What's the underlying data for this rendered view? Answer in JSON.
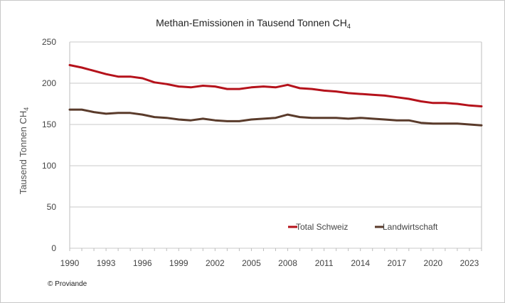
{
  "chart_data": {
    "type": "line",
    "title": "Methan-Emissionen in Tausend Tonnen CH",
    "title_subscript": "4",
    "ylabel": "Tausend Tonnen CH",
    "ylabel_subscript": "4",
    "xlabel": "",
    "ylim": [
      0,
      250
    ],
    "xlim": [
      1990,
      2024
    ],
    "y_ticks": [
      0,
      50,
      100,
      150,
      200,
      250
    ],
    "x_ticks": [
      1990,
      1993,
      1996,
      1999,
      2002,
      2005,
      2008,
      2011,
      2014,
      2017,
      2020,
      2023
    ],
    "grid": true,
    "legend_position": "bottom-right inside plot",
    "x": [
      1990,
      1991,
      1992,
      1993,
      1994,
      1995,
      1996,
      1997,
      1998,
      1999,
      2000,
      2001,
      2002,
      2003,
      2004,
      2005,
      2006,
      2007,
      2008,
      2009,
      2010,
      2011,
      2012,
      2013,
      2014,
      2015,
      2016,
      2017,
      2018,
      2019,
      2020,
      2021,
      2022,
      2023,
      2024
    ],
    "series": [
      {
        "name": "Total Schweiz",
        "color": "#b5121b",
        "values": [
          222,
          219,
          215,
          211,
          208,
          208,
          206,
          201,
          199,
          196,
          195,
          197,
          196,
          193,
          193,
          195,
          196,
          195,
          198,
          194,
          193,
          191,
          190,
          188,
          187,
          186,
          185,
          183,
          181,
          178,
          176,
          176,
          175,
          173,
          172
        ]
      },
      {
        "name": "Landwirtschaft",
        "color": "#5a3b2b",
        "values": [
          168,
          168,
          165,
          163,
          164,
          164,
          162,
          159,
          158,
          156,
          155,
          157,
          155,
          154,
          154,
          156,
          157,
          158,
          162,
          159,
          158,
          158,
          158,
          157,
          158,
          157,
          156,
          155,
          155,
          152,
          151,
          151,
          151,
          150,
          149
        ]
      }
    ]
  },
  "source": "© Proviande"
}
